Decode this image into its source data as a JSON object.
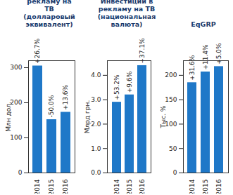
{
  "chart_data": [
    {
      "type": "bar",
      "title": "Инвестиции в рекламу на ТВ (долларовый эквивалент)",
      "ylabel": "Млн дол.",
      "categories": [
        "2014",
        "2015",
        "2016"
      ],
      "values": [
        305,
        152,
        173
      ],
      "annotations": [
        "+26.7%",
        "-50.0%",
        "+13.6%"
      ],
      "color": "#1f78c8",
      "ylim": [
        0,
        320
      ],
      "yticks": [
        0,
        100,
        200,
        300
      ]
    },
    {
      "type": "bar",
      "title": "Инвестиции в рекламу на ТВ (национальная валюта)",
      "ylabel": "Млрд грн.",
      "categories": [
        "2014",
        "2015",
        "2016"
      ],
      "values": [
        2.9,
        3.2,
        4.4
      ],
      "annotations": [
        "+53.2%",
        "+9.6%",
        "+37.1%"
      ],
      "color": "#1f78c8",
      "ylim": [
        0,
        4.6
      ],
      "yticks": [
        0,
        1,
        2,
        3,
        4
      ]
    },
    {
      "type": "bar",
      "title": "EqGRP",
      "ylabel": "Тыс. %",
      "categories": [
        "2014",
        "2015",
        "2016"
      ],
      "values": [
        185,
        207,
        218
      ],
      "annotations": [
        "+31.6%",
        "+11.4%",
        "+5.0%"
      ],
      "color": "#1f78c8",
      "ylim": [
        0,
        230
      ],
      "yticks": [
        0,
        50,
        100,
        150,
        200
      ]
    }
  ]
}
